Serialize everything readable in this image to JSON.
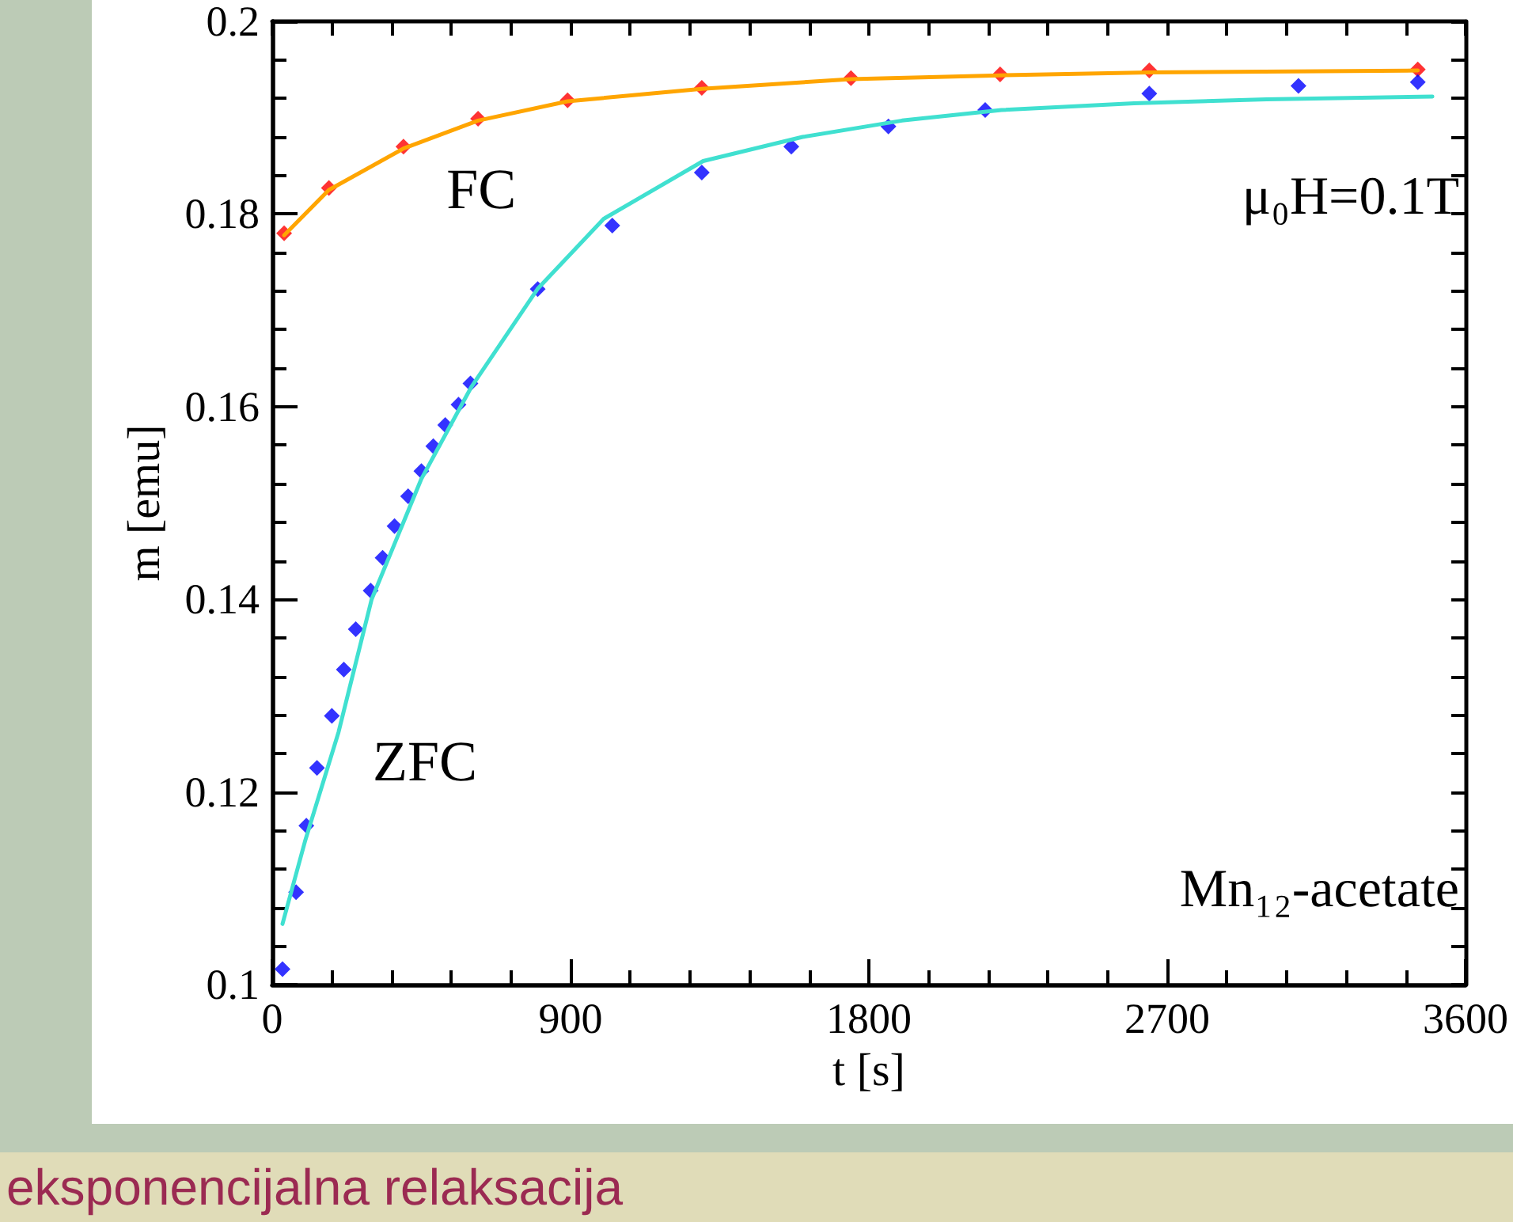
{
  "chart_data": {
    "type": "scatter",
    "xlabel": "t [s]",
    "ylabel": "m [emu]",
    "xlim": [
      0,
      3600
    ],
    "ylim": [
      0.1,
      0.2
    ],
    "xticks": [
      0,
      900,
      1800,
      2700,
      3600
    ],
    "yticks": [
      0.1,
      0.12,
      0.14,
      0.16,
      0.18,
      0.2
    ],
    "grid": false,
    "marker": "diamond",
    "series": [
      {
        "type": "scatter",
        "color": "#ff0000",
        "x": [
          36,
          171,
          396,
          621,
          891,
          1296,
          1746,
          2196,
          2646,
          3456
        ],
        "values": [
          0.178,
          0.1827,
          0.187,
          0.1899,
          0.1918,
          0.1931,
          0.1941,
          0.1945,
          0.1949,
          0.195
        ]
      },
      {
        "type": "line",
        "marker": "none",
        "color": "#ffa500",
        "x": [
          36,
          171,
          396,
          621,
          891,
          1296,
          1746,
          2196,
          2646,
          3456
        ],
        "values": [
          0.1778,
          0.1825,
          0.1868,
          0.1897,
          0.1917,
          0.193,
          0.194,
          0.1944,
          0.1947,
          0.1949
        ]
      },
      {
        "type": "scatter",
        "color": "#0000ff",
        "x": [
          31,
          72,
          103,
          135,
          180,
          216,
          252,
          297,
          333,
          369,
          410,
          450,
          486,
          522,
          562,
          598,
          801,
          1026,
          1296,
          1566,
          1859,
          2151,
          2646,
          3096,
          3456
        ],
        "values": [
          0.1016,
          0.1096,
          0.1165,
          0.1225,
          0.1279,
          0.1327,
          0.1369,
          0.1409,
          0.1443,
          0.1476,
          0.1507,
          0.1533,
          0.1559,
          0.1581,
          0.1602,
          0.1624,
          0.1722,
          0.1788,
          0.1843,
          0.187,
          0.1891,
          0.1908,
          0.1925,
          0.1933,
          0.1937
        ]
      },
      {
        "type": "line",
        "marker": "none",
        "color": "#40e0d0",
        "x": [
          31,
          100,
          200,
          300,
          450,
          600,
          800,
          1000,
          1300,
          1600,
          1900,
          2200,
          2600,
          3000,
          3500
        ],
        "values": [
          0.1063,
          0.115,
          0.1262,
          0.14,
          0.1525,
          0.162,
          0.1722,
          0.1795,
          0.1855,
          0.188,
          0.1897,
          0.1908,
          0.1915,
          0.1919,
          0.1922
        ]
      }
    ],
    "annotations": [
      "FC",
      "ZFC",
      "μ₀H=0.1T",
      "Mn₁₂-acetate",
      "eksponencijalna relaksacija"
    ]
  }
}
